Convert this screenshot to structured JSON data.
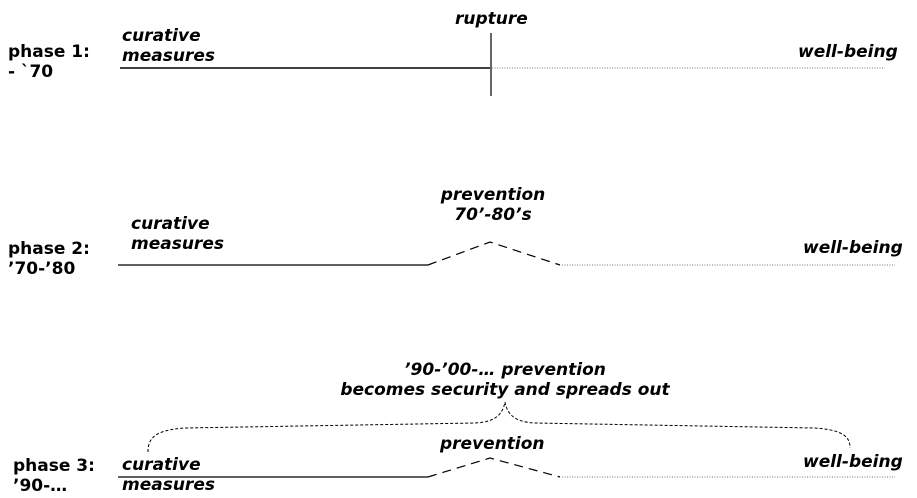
{
  "phase1": {
    "label_line1": "phase 1:",
    "label_line2": "- `70",
    "left_line1": "curative",
    "left_line2": "measures",
    "middle": "rupture",
    "right": "well-being"
  },
  "phase2": {
    "label_line1": "phase 2:",
    "label_line2": "’70-’80",
    "left_line1": "curative",
    "left_line2": "measures",
    "middle_line1": "prevention",
    "middle_line2": "70’-80’s",
    "right": "well-being"
  },
  "phase3": {
    "label_line1": "phase 3:",
    "label_line2": "’90-…",
    "left_line1": "curative",
    "left_line2": "measures",
    "middle": "prevention",
    "top_line1": "’90-’00-… prevention",
    "top_line2": "becomes security and spreads out",
    "right": "well-being"
  }
}
